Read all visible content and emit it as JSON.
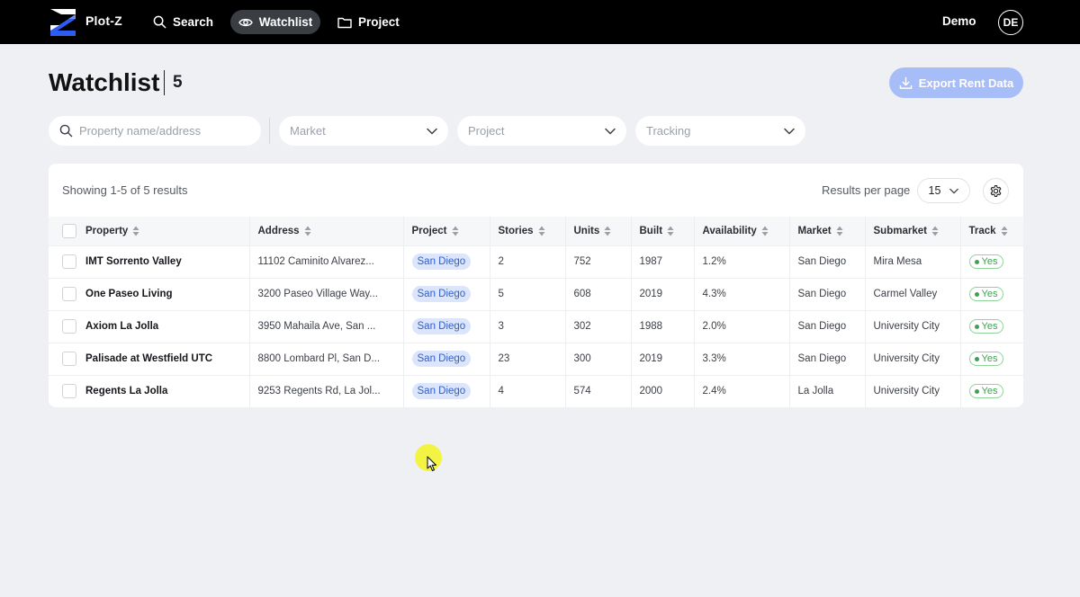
{
  "nav": {
    "brand": "Plot-Z",
    "search_label": "Search",
    "watchlist_label": "Watchlist",
    "project_label": "Project",
    "user_name": "Demo",
    "avatar_initials": "DE"
  },
  "header": {
    "title": "Watchlist",
    "count": "5",
    "export_label": "Export Rent Data"
  },
  "filters": {
    "search_placeholder": "Property name/address",
    "market_placeholder": "Market",
    "project_placeholder": "Project",
    "tracking_placeholder": "Tracking"
  },
  "table": {
    "showing_text": "Showing 1-5 of 5 results",
    "results_per_page_label": "Results per page",
    "results_per_page_value": "15",
    "columns": [
      "Property",
      "Address",
      "Project",
      "Stories",
      "Units",
      "Built",
      "Availability",
      "Market",
      "Submarket",
      "Track"
    ],
    "rows": [
      {
        "property": "IMT Sorrento Valley",
        "address": "11102 Caminito Alvarez...",
        "project": "San Diego",
        "stories": "2",
        "units": "752",
        "built": "1987",
        "availability": "1.2%",
        "market": "San Diego",
        "submarket": "Mira Mesa",
        "track": "Yes"
      },
      {
        "property": "One Paseo Living",
        "address": "3200 Paseo Village Way...",
        "project": "San Diego",
        "stories": "5",
        "units": "608",
        "built": "2019",
        "availability": "4.3%",
        "market": "San Diego",
        "submarket": "Carmel Valley",
        "track": "Yes"
      },
      {
        "property": "Axiom La Jolla",
        "address": "3950 Mahaila Ave, San ...",
        "project": "San Diego",
        "stories": "3",
        "units": "302",
        "built": "1988",
        "availability": "2.0%",
        "market": "San Diego",
        "submarket": "University City",
        "track": "Yes"
      },
      {
        "property": "Palisade at Westfield UTC",
        "address": "8800 Lombard Pl, San D...",
        "project": "San Diego",
        "stories": "23",
        "units": "300",
        "built": "2019",
        "availability": "3.3%",
        "market": "San Diego",
        "submarket": "University City",
        "track": "Yes"
      },
      {
        "property": "Regents La Jolla",
        "address": "9253 Regents Rd, La Jol...",
        "project": "San Diego",
        "stories": "4",
        "units": "574",
        "built": "2000",
        "availability": "2.4%",
        "market": "La Jolla",
        "submarket": "University City",
        "track": "Yes"
      }
    ]
  },
  "colors": {
    "nav_bg": "#000000",
    "accent_blue": "#a7bdf8",
    "pill_bg": "#dbe5fb",
    "track_green": "#3da153"
  }
}
